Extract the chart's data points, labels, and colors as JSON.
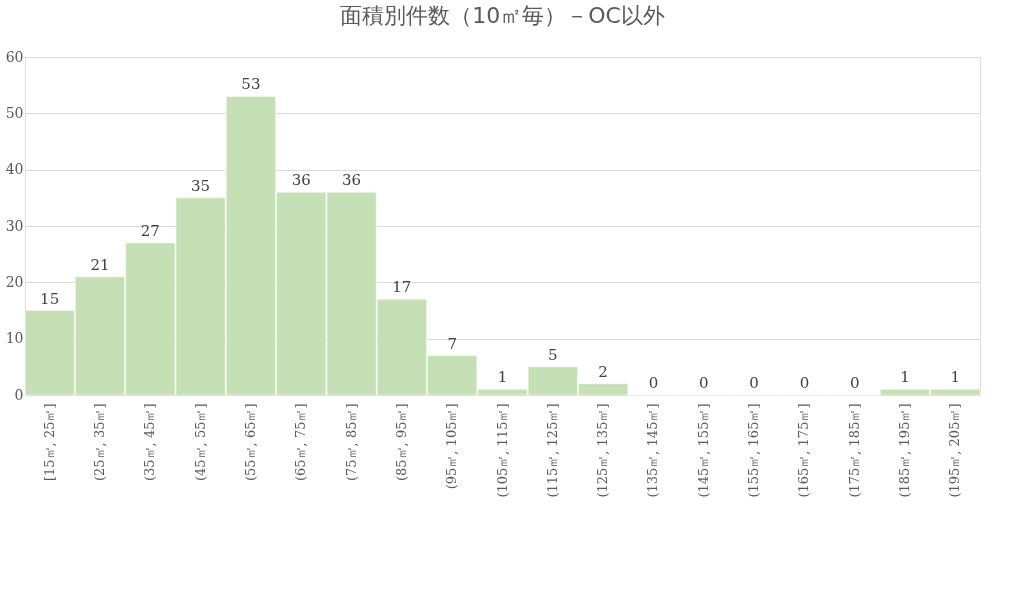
{
  "chart_data": {
    "type": "bar",
    "title": "面積別件数（10㎡毎）－OC以外",
    "categories": [
      "[15㎡, 25㎡]",
      "(25㎡, 35㎡]",
      "(35㎡, 45㎡]",
      "(45㎡, 55㎡]",
      "(55㎡, 65㎡]",
      "(65㎡, 75㎡]",
      "(75㎡, 85㎡]",
      "(85㎡, 95㎡]",
      "(95㎡, 105㎡]",
      "(105㎡, 115㎡]",
      "(115㎡, 125㎡]",
      "(125㎡, 135㎡]",
      "(135㎡, 145㎡]",
      "(145㎡, 155㎡]",
      "(155㎡, 165㎡]",
      "(165㎡, 175㎡]",
      "(175㎡, 185㎡]",
      "(185㎡, 195㎡]",
      "(195㎡, 205㎡]"
    ],
    "values": [
      15,
      21,
      27,
      35,
      53,
      36,
      36,
      17,
      7,
      1,
      5,
      2,
      0,
      0,
      0,
      0,
      0,
      1,
      1
    ],
    "color": "#c5e0b4",
    "ylim": [
      0,
      60
    ],
    "yticks": [
      0,
      10,
      20,
      30,
      40,
      50,
      60
    ],
    "grid": "y",
    "data_labels": true
  }
}
